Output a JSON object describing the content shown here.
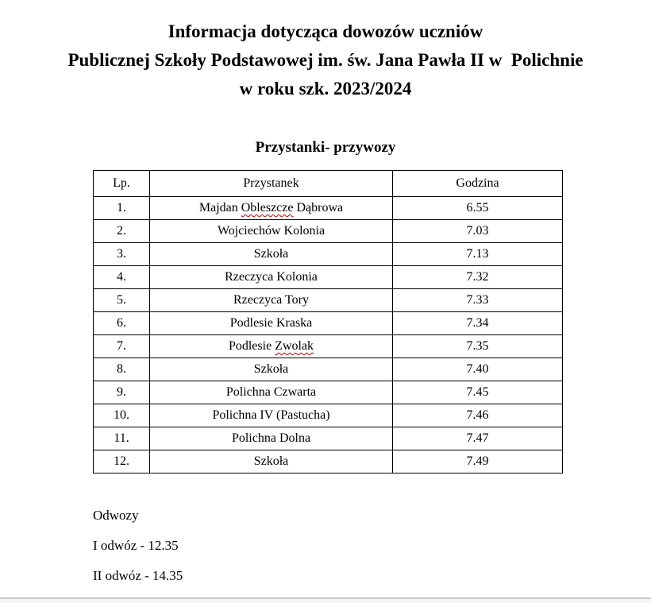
{
  "header": {
    "title_lines": [
      "Informacja dotycząca dowozów uczniów",
      "Publicznej Szkoły Podstawowej im. św. Jana Pawła II w  Polichnie",
      "w roku szk. 2023/2024"
    ],
    "subtitle": "Przystanki- przywozy"
  },
  "table": {
    "headers": [
      "Lp.",
      "Przystanek",
      "Godzina"
    ],
    "rows": [
      {
        "lp": "1.",
        "przystanek": "Majdan Obleszcze Dąbrowa",
        "godzina": "6.55",
        "squiggle": "Obleszcze"
      },
      {
        "lp": "2.",
        "przystanek": "Wojciechów Kolonia",
        "godzina": "7.03"
      },
      {
        "lp": "3.",
        "przystanek": "Szkoła",
        "godzina": "7.13"
      },
      {
        "lp": "4.",
        "przystanek": "Rzeczyca Kolonia",
        "godzina": "7.32"
      },
      {
        "lp": "5.",
        "przystanek": "Rzeczyca Tory",
        "godzina": "7.33"
      },
      {
        "lp": "6.",
        "przystanek": "Podlesie Kraska",
        "godzina": "7.34"
      },
      {
        "lp": "7.",
        "przystanek": "Podlesie Zwolak",
        "godzina": "7.35",
        "squiggle": "Zwolak"
      },
      {
        "lp": "8.",
        "przystanek": "Szkoła",
        "godzina": "7.40"
      },
      {
        "lp": "9.",
        "przystanek": "Polichna Czwarta",
        "godzina": "7.45"
      },
      {
        "lp": "10.",
        "przystanek": "Polichna IV (Pastucha)",
        "godzina": "7.46"
      },
      {
        "lp": "11.",
        "przystanek": "Polichna Dolna",
        "godzina": "7.47"
      },
      {
        "lp": "12.",
        "przystanek": "Szkoła",
        "godzina": "7.49"
      }
    ]
  },
  "footer": {
    "odwozy_label": "Odwozy",
    "lines": [
      "I odwóz - 12.35",
      "II odwóz - 14.35"
    ]
  },
  "colors": {
    "spellcheck_underline": "#c00000",
    "page_edge_line": "#c8c8c8",
    "below_page": "#f4f4f4"
  }
}
